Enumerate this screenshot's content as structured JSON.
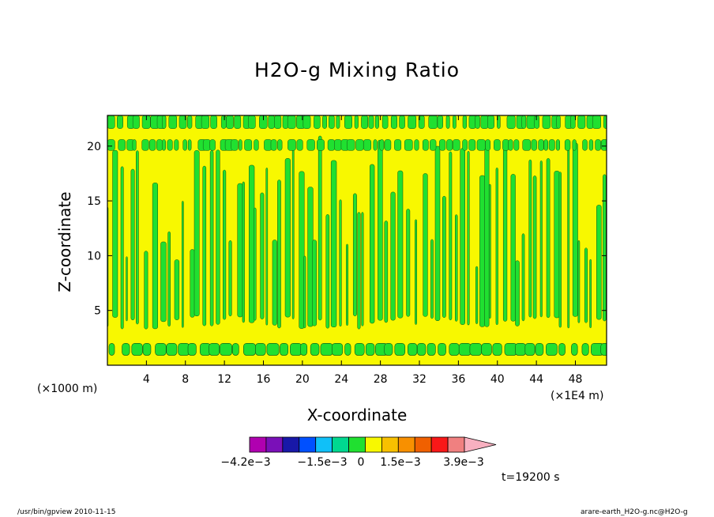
{
  "chart_data": {
    "type": "heatmap",
    "title": "H2O-g Mixing Ratio",
    "xlabel": "X-coordinate",
    "ylabel": "Z-coordinate",
    "x_unit": "(×1E4 m)",
    "y_unit": "(×1000 m)",
    "xticks": [
      4,
      8,
      12,
      16,
      20,
      24,
      28,
      32,
      36,
      40,
      44,
      48
    ],
    "yticks": [
      5,
      10,
      15,
      20
    ],
    "xlim": [
      0,
      51.2
    ],
    "ylim": [
      0,
      22.8
    ],
    "colorbar": {
      "colors": [
        "#b000b0",
        "#7a10b8",
        "#1818a8",
        "#0050ff",
        "#10c0f8",
        "#00d890",
        "#20e030",
        "#f8f800",
        "#f8c000",
        "#f89000",
        "#f06000",
        "#f81818",
        "#f08080",
        "#f8b0c0"
      ],
      "labels": [
        "−4.2e−3",
        "−1.5e−3",
        "0",
        "1.5e−3",
        "3.9e−3"
      ]
    },
    "time_label": "t=19200 s"
  },
  "footer": {
    "left": "/usr/bin/gpview   2010-11-15",
    "right": "arare-earth_H2O-g.nc@H2O-g"
  }
}
